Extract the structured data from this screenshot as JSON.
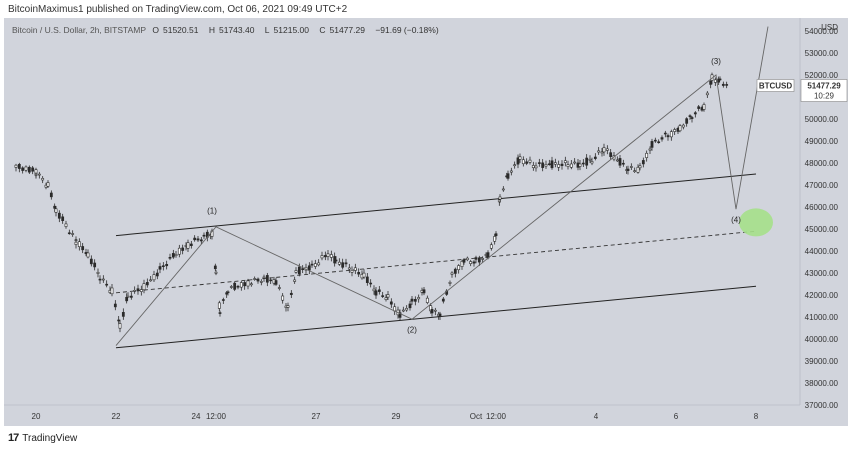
{
  "header": {
    "text": "BitcoinMaximus1 published on TradingView.com, Oct 06, 2021 09:49 UTC+2"
  },
  "symbol_line": {
    "name": "Bitcoin / U.S. Dollar, 2h, BITSTAMP",
    "open_label": "O",
    "open": "51520.51",
    "high_label": "H",
    "high": "51743.40",
    "low_label": "L",
    "low": "51215.00",
    "close_label": "C",
    "close": "51477.29",
    "change": "−91.69 (−0.18%)"
  },
  "price_label": {
    "ticker": "BTCUSD",
    "price": "51477.29",
    "countdown": "10:29"
  },
  "footer": {
    "logo": "17",
    "brand": "TradingView"
  },
  "chart_data": {
    "type": "candlestick",
    "title": "Bitcoin / U.S. Dollar, 2h, BITSTAMP",
    "currency": "USD",
    "y_range": [
      37000,
      54500
    ],
    "y_ticks": [
      37000,
      38000,
      39000,
      40000,
      41000,
      42000,
      43000,
      44000,
      45000,
      46000,
      47000,
      48000,
      49000,
      50000,
      51000,
      52000,
      53000,
      54000
    ],
    "y_tick_labels": [
      "37000.00",
      "38000.00",
      "39000.00",
      "40000.00",
      "41000.00",
      "42000.00",
      "43000.00",
      "44000.00",
      "45000.00",
      "46000.00",
      "47000.00",
      "48000.00",
      "49000.00",
      "50000.00",
      "51000.00",
      "52000.00",
      "53000.00",
      "54000.00"
    ],
    "x_ticks": [
      "20",
      "22",
      "24",
      "12:00",
      "27",
      "29",
      "Oct",
      "12:00",
      "4",
      "6",
      "8"
    ],
    "x_tick_days": [
      -10.5,
      -8.5,
      -6.5,
      -6.0,
      -3.5,
      -1.5,
      0.5,
      1.0,
      3.5,
      5.5,
      7.5
    ],
    "price_points": [
      [
        -11,
        47800
      ],
      [
        -10.5,
        47600
      ],
      [
        -10.2,
        47000
      ],
      [
        -10.0,
        45800
      ],
      [
        -9.5,
        44500
      ],
      [
        -9.2,
        43800
      ],
      [
        -8.9,
        42800
      ],
      [
        -8.6,
        42200
      ],
      [
        -8.4,
        40600
      ],
      [
        -8.2,
        41900
      ],
      [
        -7.8,
        42400
      ],
      [
        -7.4,
        43100
      ],
      [
        -7.0,
        43900
      ],
      [
        -6.7,
        44300
      ],
      [
        -6.3,
        44600
      ],
      [
        -6.1,
        44800
      ],
      [
        -6.0,
        43000
      ],
      [
        -5.9,
        41300
      ],
      [
        -5.7,
        42200
      ],
      [
        -5.2,
        42600
      ],
      [
        -4.8,
        42700
      ],
      [
        -4.5,
        42600
      ],
      [
        -4.2,
        41400
      ],
      [
        -4.0,
        43000
      ],
      [
        -3.6,
        43300
      ],
      [
        -3.2,
        43900
      ],
      [
        -3.0,
        43500
      ],
      [
        -2.6,
        43200
      ],
      [
        -2.3,
        42900
      ],
      [
        -2.0,
        42100
      ],
      [
        -1.7,
        41900
      ],
      [
        -1.4,
        41100
      ],
      [
        -1.1,
        41600
      ],
      [
        -0.8,
        42200
      ],
      [
        -0.6,
        41300
      ],
      [
        -0.4,
        41100
      ],
      [
        -0.1,
        42900
      ],
      [
        0.2,
        43600
      ],
      [
        0.5,
        43500
      ],
      [
        0.8,
        43800
      ],
      [
        1.0,
        44800
      ],
      [
        1.1,
        46500
      ],
      [
        1.3,
        47400
      ],
      [
        1.6,
        48200
      ],
      [
        2.0,
        47900
      ],
      [
        2.4,
        47900
      ],
      [
        2.8,
        48000
      ],
      [
        3.1,
        47900
      ],
      [
        3.4,
        48100
      ],
      [
        3.7,
        48700
      ],
      [
        4.1,
        48000
      ],
      [
        4.3,
        47700
      ],
      [
        4.6,
        47800
      ],
      [
        4.9,
        48800
      ],
      [
        5.3,
        49300
      ],
      [
        5.6,
        49600
      ],
      [
        5.9,
        50100
      ],
      [
        6.2,
        50600
      ],
      [
        6.4,
        51900
      ],
      [
        6.6,
        51700
      ],
      [
        6.8,
        51500
      ]
    ],
    "channel": {
      "upper": [
        [
          -8.5,
          44700
        ],
        [
          7.5,
          47500
        ]
      ],
      "middle": [
        [
          -8.5,
          42100
        ],
        [
          7.5,
          44900
        ]
      ],
      "lower": [
        [
          -8.5,
          39600
        ],
        [
          7.5,
          42400
        ]
      ]
    },
    "wave_path": [
      [
        -8.5,
        39700
      ],
      [
        -6.0,
        45100
      ],
      [
        -1.1,
        40900
      ],
      [
        6.5,
        52000
      ],
      [
        7.0,
        45900
      ],
      [
        7.8,
        54200
      ]
    ],
    "wave_labels": [
      {
        "text": "(1)",
        "day": -6.1,
        "price": 45700
      },
      {
        "text": "(2)",
        "day": -1.1,
        "price": 40300
      },
      {
        "text": "(3)",
        "day": 6.5,
        "price": 52500
      },
      {
        "text": "(4)",
        "day": 7.0,
        "price": 45300
      }
    ],
    "target_circle": {
      "day": 7.5,
      "price": 45300,
      "color": "#a5e08a"
    },
    "colors": {
      "background": "#d1d4dc",
      "candle": "#2b2b2b",
      "up_fill": "#ffffff",
      "line": "#4a4a4a",
      "price_label_bg": "#ffffff"
    }
  }
}
